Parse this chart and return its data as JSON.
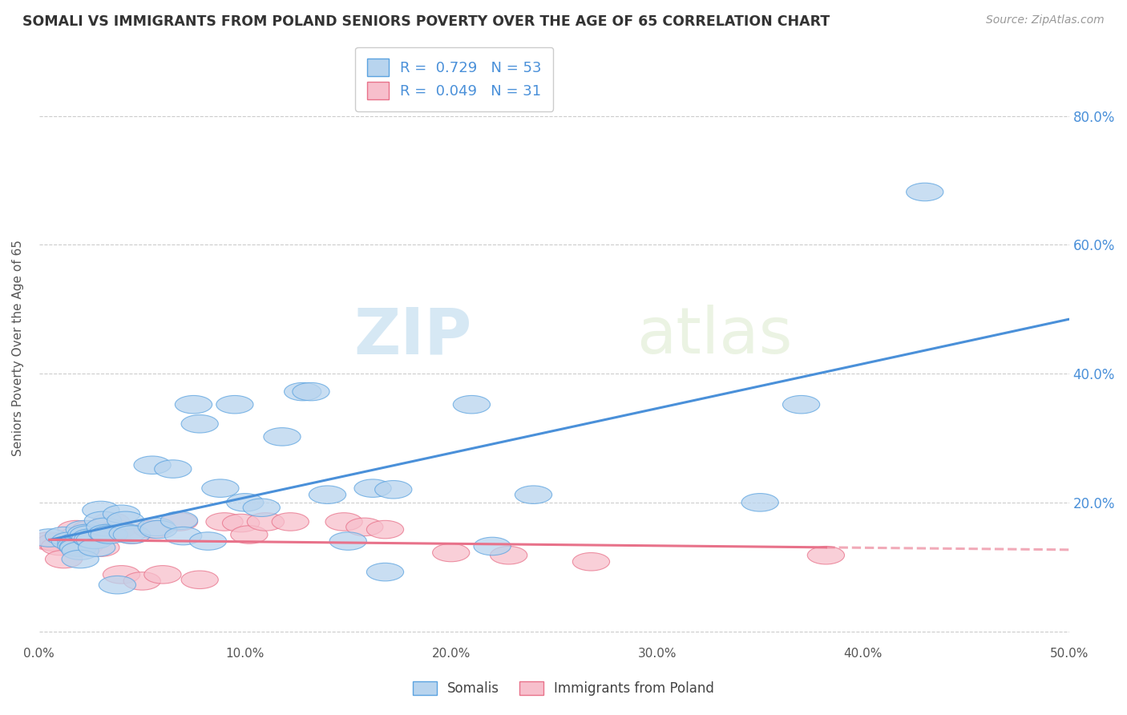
{
  "title": "SOMALI VS IMMIGRANTS FROM POLAND SENIORS POVERTY OVER THE AGE OF 65 CORRELATION CHART",
  "source": "Source: ZipAtlas.com",
  "ylabel": "Seniors Poverty Over the Age of 65",
  "xlim": [
    0.0,
    0.5
  ],
  "ylim": [
    -0.02,
    0.9
  ],
  "yticks": [
    0.0,
    0.2,
    0.4,
    0.6,
    0.8
  ],
  "xticks": [
    0.0,
    0.1,
    0.2,
    0.3,
    0.4,
    0.5
  ],
  "xtick_labels": [
    "0.0%",
    "10.0%",
    "20.0%",
    "30.0%",
    "40.0%",
    "50.0%"
  ],
  "ytick_labels_right": [
    "",
    "20.0%",
    "40.0%",
    "60.0%",
    "80.0%"
  ],
  "somali_fill_color": "#b8d4ee",
  "poland_fill_color": "#f7bfcc",
  "somali_edge_color": "#5ba3e0",
  "poland_edge_color": "#e8728a",
  "somali_line_color": "#4a90d9",
  "poland_line_color": "#e8728a",
  "somali_R": 0.729,
  "somali_N": 53,
  "poland_R": 0.049,
  "poland_N": 31,
  "legend_label_somali": "Somalis",
  "legend_label_poland": "Immigrants from Poland",
  "watermark_zip": "ZIP",
  "watermark_atlas": "atlas",
  "somali_x": [
    0.005,
    0.012,
    0.015,
    0.018,
    0.018,
    0.019,
    0.019,
    0.02,
    0.02,
    0.022,
    0.023,
    0.024,
    0.025,
    0.026,
    0.027,
    0.028,
    0.03,
    0.031,
    0.032,
    0.033,
    0.034,
    0.038,
    0.04,
    0.042,
    0.043,
    0.045,
    0.055,
    0.057,
    0.058,
    0.065,
    0.068,
    0.07,
    0.075,
    0.078,
    0.082,
    0.088,
    0.095,
    0.1,
    0.108,
    0.118,
    0.128,
    0.132,
    0.14,
    0.15,
    0.162,
    0.168,
    0.172,
    0.21,
    0.22,
    0.24,
    0.35,
    0.37,
    0.43
  ],
  "somali_y": [
    0.145,
    0.148,
    0.14,
    0.138,
    0.133,
    0.132,
    0.13,
    0.125,
    0.112,
    0.158,
    0.152,
    0.15,
    0.145,
    0.143,
    0.142,
    0.13,
    0.188,
    0.172,
    0.162,
    0.152,
    0.15,
    0.072,
    0.182,
    0.172,
    0.152,
    0.15,
    0.258,
    0.162,
    0.158,
    0.252,
    0.172,
    0.148,
    0.352,
    0.322,
    0.14,
    0.222,
    0.352,
    0.2,
    0.192,
    0.302,
    0.372,
    0.372,
    0.212,
    0.14,
    0.222,
    0.092,
    0.22,
    0.352,
    0.132,
    0.212,
    0.2,
    0.352,
    0.682
  ],
  "poland_x": [
    0.005,
    0.008,
    0.01,
    0.012,
    0.018,
    0.019,
    0.022,
    0.025,
    0.028,
    0.03,
    0.035,
    0.038,
    0.04,
    0.045,
    0.05,
    0.055,
    0.06,
    0.068,
    0.078,
    0.09,
    0.098,
    0.102,
    0.11,
    0.122,
    0.148,
    0.158,
    0.168,
    0.2,
    0.228,
    0.268,
    0.382
  ],
  "poland_y": [
    0.14,
    0.138,
    0.132,
    0.112,
    0.158,
    0.148,
    0.132,
    0.158,
    0.152,
    0.13,
    0.17,
    0.158,
    0.088,
    0.15,
    0.078,
    0.158,
    0.088,
    0.17,
    0.08,
    0.17,
    0.168,
    0.15,
    0.17,
    0.17,
    0.17,
    0.162,
    0.158,
    0.122,
    0.118,
    0.108,
    0.118
  ],
  "background_color": "#ffffff",
  "grid_color": "#cccccc",
  "axis_color": "#cccccc"
}
